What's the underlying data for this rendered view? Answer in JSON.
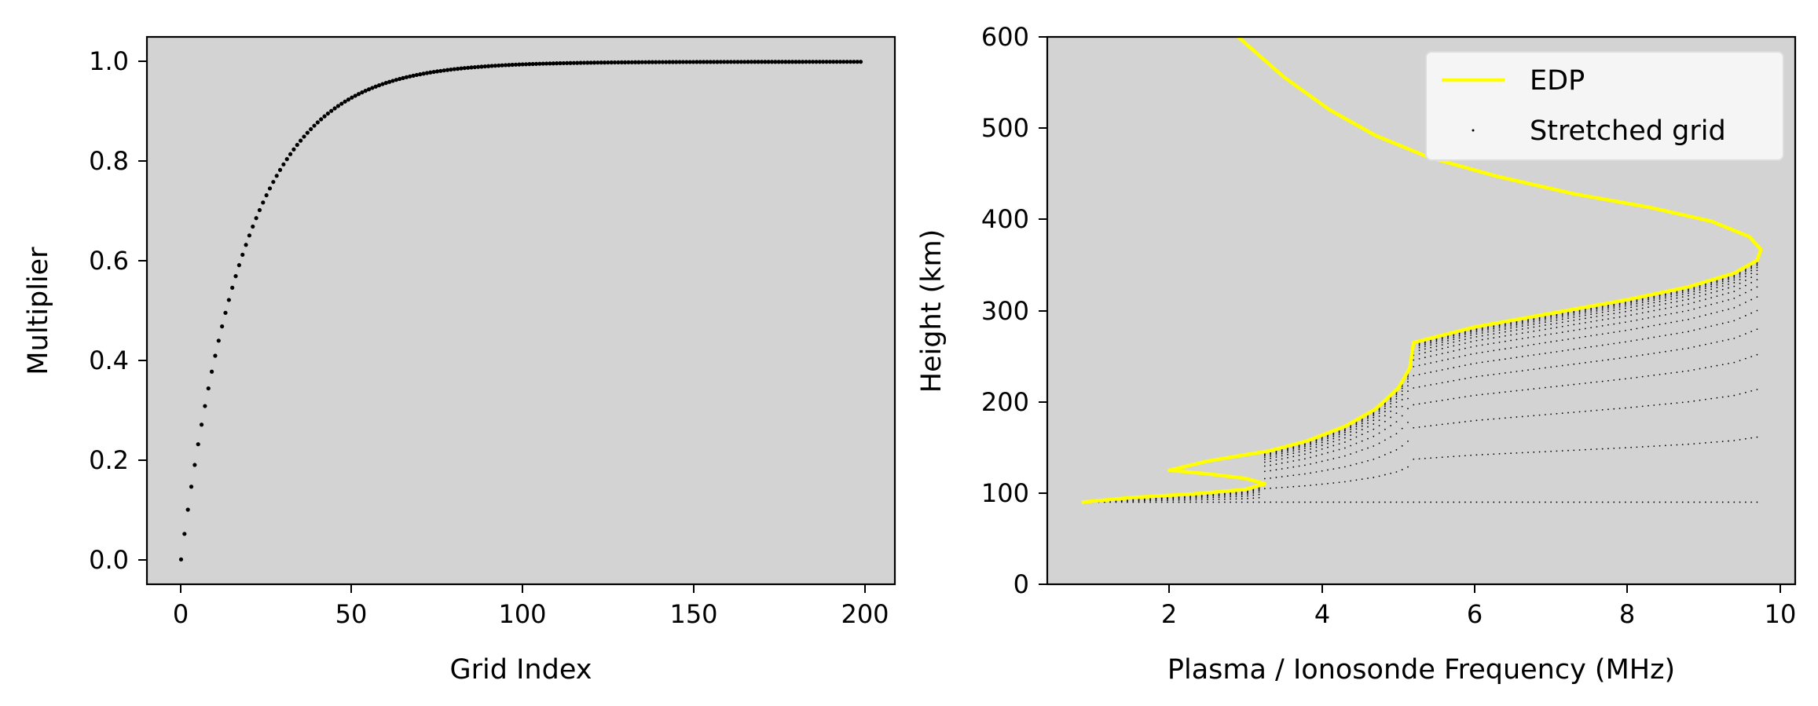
{
  "chart_data": [
    {
      "type": "scatter",
      "xlabel": "Grid Index",
      "ylabel": "Multiplier",
      "xlim": [
        -10,
        209
      ],
      "ylim": [
        -0.05,
        1.05
      ],
      "xticks": [
        "0",
        "50",
        "100",
        "150",
        "200"
      ],
      "yticks": [
        "0.0",
        "0.2",
        "0.4",
        "0.6",
        "0.8",
        "1.0"
      ],
      "background": "#d3d3d3",
      "series": [
        {
          "marker_color": "#000000",
          "n_points": 200,
          "x_start": 0,
          "x_end": 199,
          "model": "y = 1 - exp(-x/19)",
          "sample_points": [
            [
              0,
              0.0
            ],
            [
              5,
              0.23
            ],
            [
              10,
              0.41
            ],
            [
              20,
              0.65
            ],
            [
              30,
              0.79
            ],
            [
              40,
              0.88
            ],
            [
              50,
              0.93
            ],
            [
              60,
              0.96
            ],
            [
              75,
              0.98
            ],
            [
              100,
              0.995
            ],
            [
              150,
              1.0
            ],
            [
              199,
              1.0
            ]
          ]
        }
      ]
    },
    {
      "type": "line",
      "xlabel": "Plasma / Ionosonde Frequency (MHz)",
      "ylabel": "Height (km)",
      "xlim": [
        0.4,
        10.2
      ],
      "ylim": [
        0,
        600
      ],
      "xticks": [
        "2",
        "4",
        "6",
        "8",
        "10"
      ],
      "yticks": [
        "0",
        "100",
        "200",
        "300",
        "400",
        "500",
        "600"
      ],
      "background": "#d3d3d3",
      "legend_position": "top-right",
      "series": [
        {
          "name": "EDP",
          "color": "#ffff00",
          "points": [
            [
              0.85,
              90
            ],
            [
              1.5,
              95
            ],
            [
              2.3,
              99
            ],
            [
              3.0,
              104
            ],
            [
              3.25,
              110
            ],
            [
              3.0,
              116
            ],
            [
              2.5,
              121
            ],
            [
              2.0,
              125
            ],
            [
              2.5,
              135
            ],
            [
              3.0,
              142
            ],
            [
              3.3,
              146
            ],
            [
              3.8,
              157
            ],
            [
              4.3,
              173
            ],
            [
              4.7,
              192
            ],
            [
              5.0,
              215
            ],
            [
              5.15,
              237
            ],
            [
              5.2,
              265
            ],
            [
              6.0,
              282
            ],
            [
              7.0,
              297
            ],
            [
              8.0,
              312
            ],
            [
              8.8,
              326
            ],
            [
              9.4,
              341
            ],
            [
              9.7,
              355
            ],
            [
              9.75,
              367
            ],
            [
              9.6,
              381
            ],
            [
              9.1,
              398
            ],
            [
              8.3,
              413
            ],
            [
              7.3,
              428
            ],
            [
              6.3,
              447
            ],
            [
              5.4,
              468
            ],
            [
              4.7,
              492
            ],
            [
              4.1,
              520
            ],
            [
              3.5,
              556
            ],
            [
              2.9,
              600
            ]
          ]
        },
        {
          "name": "Stretched grid",
          "color": "#000000"
        }
      ]
    }
  ]
}
